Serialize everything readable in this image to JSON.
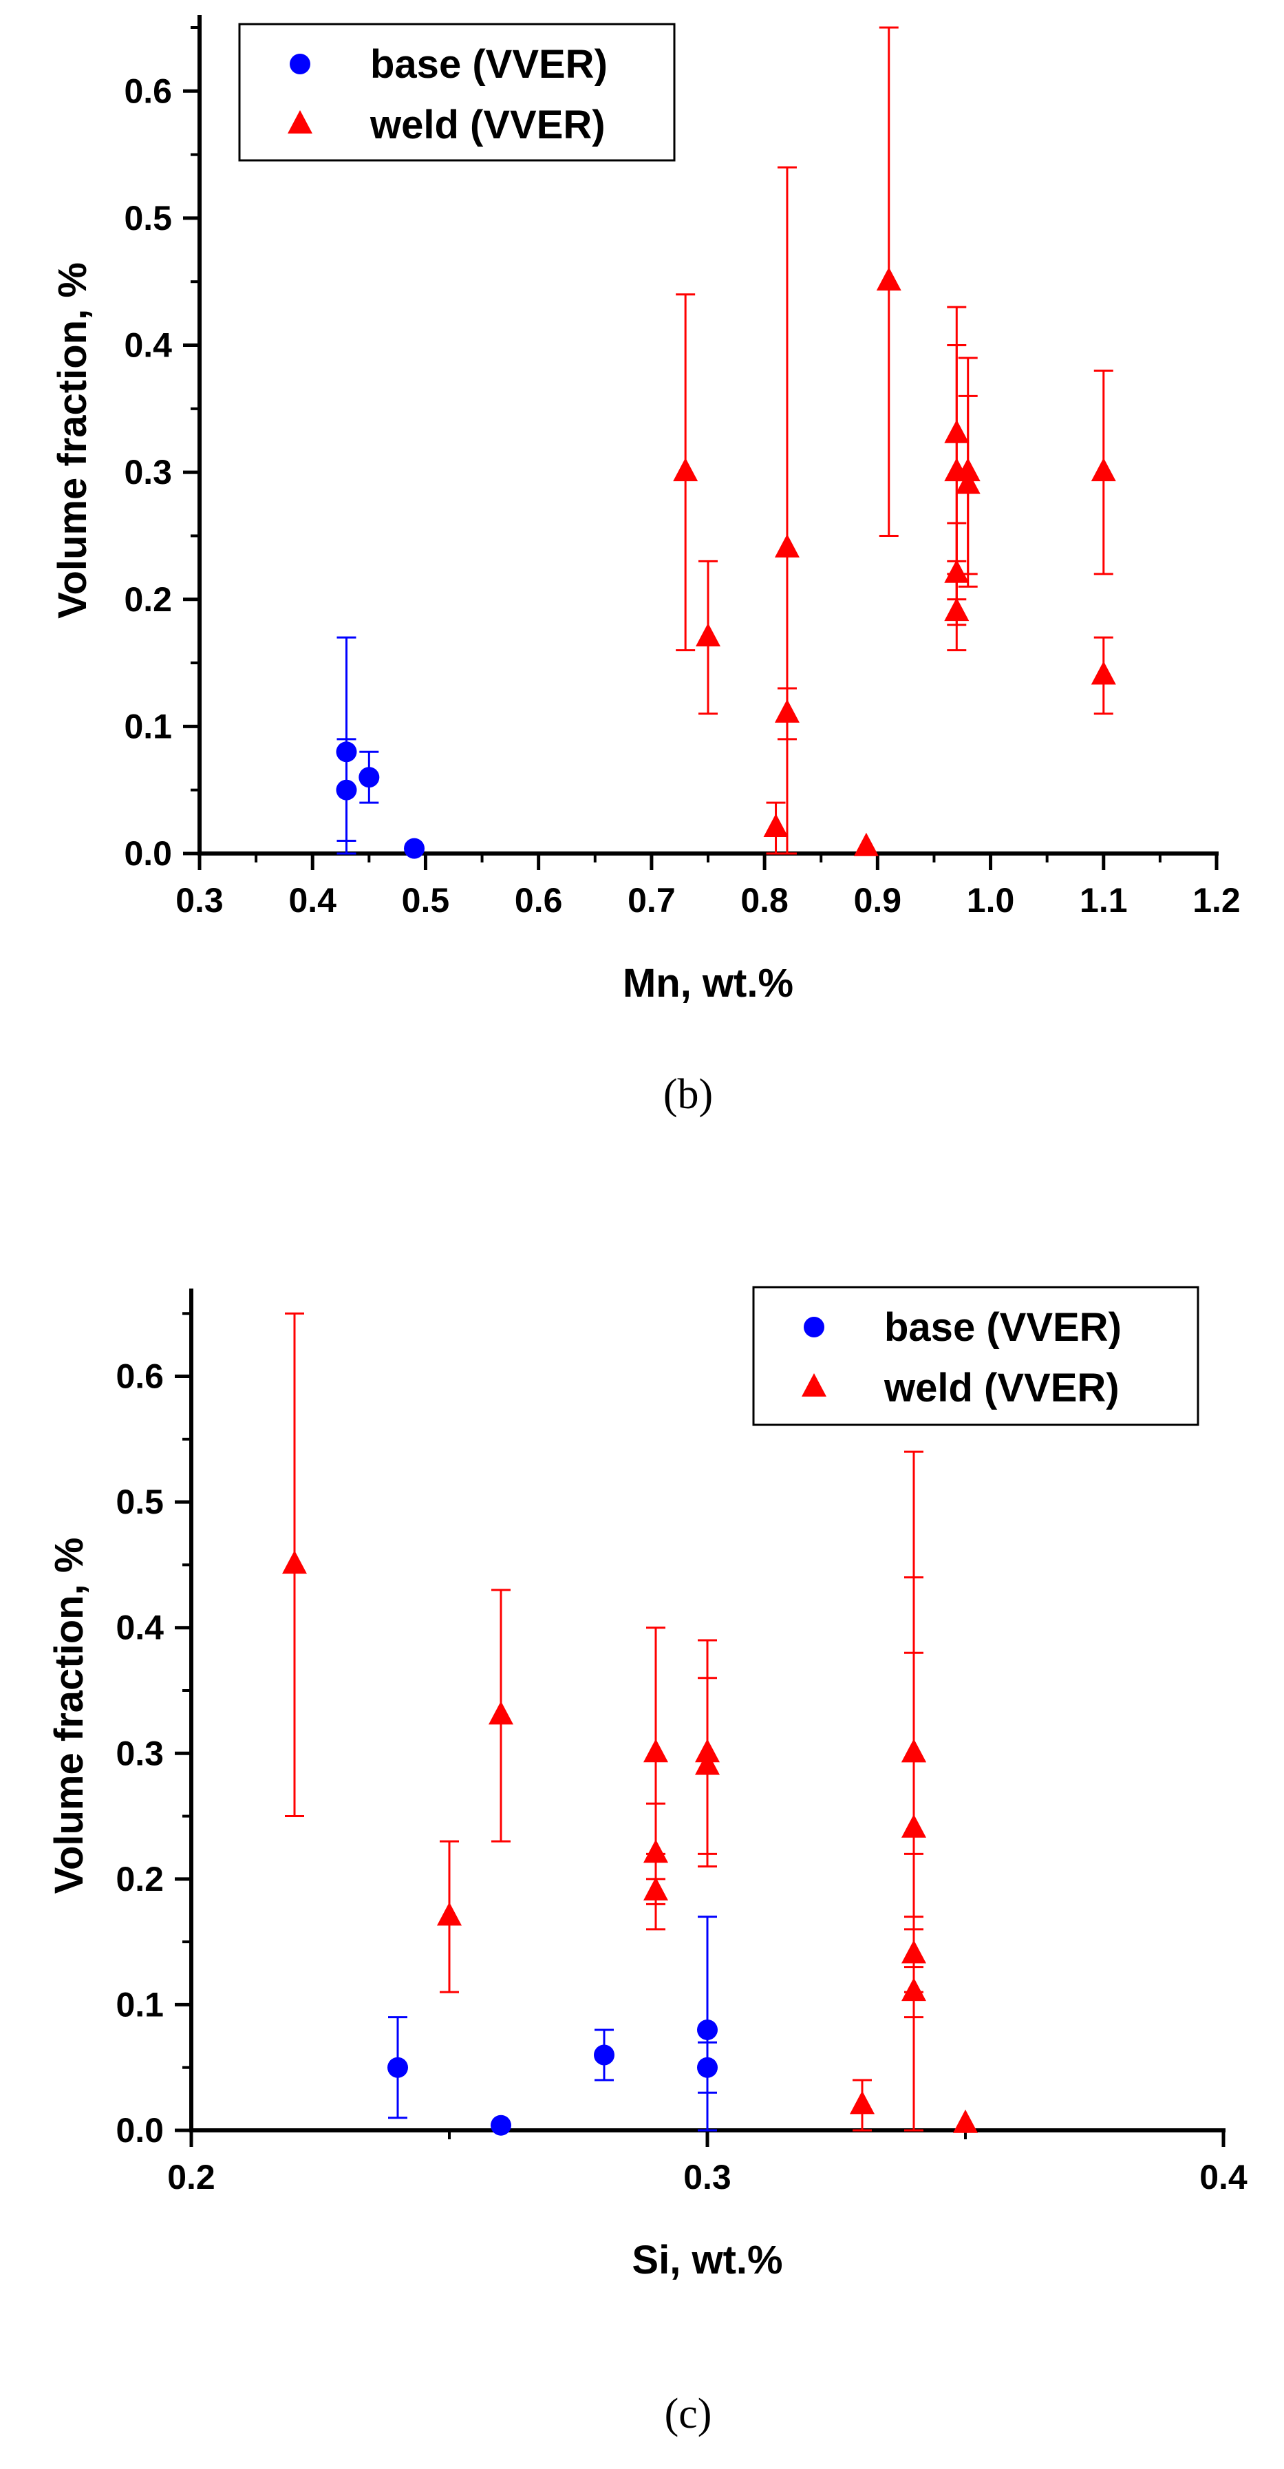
{
  "chart_data": [
    {
      "type": "scatter",
      "panel_label": "(b)",
      "xlabel": "Mn, wt.%",
      "ylabel": "Volume fraction, %",
      "xlim": [
        0.3,
        1.2
      ],
      "ylim": [
        0,
        0.65
      ],
      "xticks": [
        "0.3",
        "0.4",
        "0.5",
        "0.6",
        "0.7",
        "0.8",
        "0.9",
        "1.0",
        "1.1",
        "1.2"
      ],
      "yticks": [
        "0.0",
        "0.1",
        "0.2",
        "0.3",
        "0.4",
        "0.5",
        "0.6"
      ],
      "legend_position": "top-left",
      "error_bars": true,
      "series": [
        {
          "name": "base (VVER)",
          "marker": "circle",
          "color": "#0000ff",
          "points": [
            {
              "x": 0.43,
              "y": 0.08,
              "lo": 0.0,
              "hi": 0.17
            },
            {
              "x": 0.43,
              "y": 0.05,
              "lo": 0.01,
              "hi": 0.09
            },
            {
              "x": 0.45,
              "y": 0.06,
              "lo": 0.04,
              "hi": 0.08
            },
            {
              "x": 0.49,
              "y": 0.004,
              "lo": 0.004,
              "hi": 0.004
            }
          ]
        },
        {
          "name": "weld (VVER)",
          "marker": "triangle",
          "color": "#ff0000",
          "points": [
            {
              "x": 0.73,
              "y": 0.3,
              "lo": 0.16,
              "hi": 0.44
            },
            {
              "x": 0.75,
              "y": 0.17,
              "lo": 0.11,
              "hi": 0.23
            },
            {
              "x": 0.81,
              "y": 0.02,
              "lo": 0.0,
              "hi": 0.04
            },
            {
              "x": 0.82,
              "y": 0.24,
              "lo": 0.0,
              "hi": 0.54
            },
            {
              "x": 0.82,
              "y": 0.11,
              "lo": 0.09,
              "hi": 0.13
            },
            {
              "x": 0.89,
              "y": 0.005,
              "lo": 0.005,
              "hi": 0.005
            },
            {
              "x": 0.91,
              "y": 0.45,
              "lo": 0.25,
              "hi": 0.65
            },
            {
              "x": 0.97,
              "y": 0.33,
              "lo": 0.23,
              "hi": 0.43
            },
            {
              "x": 0.97,
              "y": 0.3,
              "lo": 0.2,
              "hi": 0.4
            },
            {
              "x": 0.97,
              "y": 0.22,
              "lo": 0.18,
              "hi": 0.26
            },
            {
              "x": 0.97,
              "y": 0.19,
              "lo": 0.16,
              "hi": 0.22
            },
            {
              "x": 0.98,
              "y": 0.3,
              "lo": 0.21,
              "hi": 0.39
            },
            {
              "x": 0.98,
              "y": 0.29,
              "lo": 0.22,
              "hi": 0.36
            },
            {
              "x": 1.1,
              "y": 0.3,
              "lo": 0.22,
              "hi": 0.38
            },
            {
              "x": 1.1,
              "y": 0.14,
              "lo": 0.11,
              "hi": 0.17
            }
          ]
        }
      ]
    },
    {
      "type": "scatter",
      "panel_label": "(c)",
      "xlabel": "Si, wt.%",
      "ylabel": "Volume fraction, %",
      "xlim": [
        0.2,
        0.4
      ],
      "ylim": [
        0,
        0.66
      ],
      "xticks": [
        "0.2",
        "0.3",
        "0.4"
      ],
      "yticks": [
        "0.0",
        "0.1",
        "0.2",
        "0.3",
        "0.4",
        "0.5",
        "0.6"
      ],
      "legend_position": "top-right",
      "error_bars": true,
      "series": [
        {
          "name": "base (VVER)",
          "marker": "circle",
          "color": "#0000ff",
          "points": [
            {
              "x": 0.24,
              "y": 0.05,
              "lo": 0.01,
              "hi": 0.09
            },
            {
              "x": 0.26,
              "y": 0.004,
              "lo": 0.004,
              "hi": 0.004
            },
            {
              "x": 0.28,
              "y": 0.06,
              "lo": 0.04,
              "hi": 0.08
            },
            {
              "x": 0.3,
              "y": 0.08,
              "lo": 0.0,
              "hi": 0.17
            },
            {
              "x": 0.3,
              "y": 0.05,
              "lo": 0.03,
              "hi": 0.07
            }
          ]
        },
        {
          "name": "weld (VVER)",
          "marker": "triangle",
          "color": "#ff0000",
          "points": [
            {
              "x": 0.22,
              "y": 0.45,
              "lo": 0.25,
              "hi": 0.65
            },
            {
              "x": 0.25,
              "y": 0.17,
              "lo": 0.11,
              "hi": 0.23
            },
            {
              "x": 0.26,
              "y": 0.33,
              "lo": 0.23,
              "hi": 0.43
            },
            {
              "x": 0.29,
              "y": 0.3,
              "lo": 0.2,
              "hi": 0.4
            },
            {
              "x": 0.29,
              "y": 0.22,
              "lo": 0.18,
              "hi": 0.26
            },
            {
              "x": 0.29,
              "y": 0.19,
              "lo": 0.16,
              "hi": 0.22
            },
            {
              "x": 0.3,
              "y": 0.3,
              "lo": 0.21,
              "hi": 0.39
            },
            {
              "x": 0.3,
              "y": 0.29,
              "lo": 0.22,
              "hi": 0.36
            },
            {
              "x": 0.33,
              "y": 0.02,
              "lo": 0.0,
              "hi": 0.04
            },
            {
              "x": 0.34,
              "y": 0.3,
              "lo": 0.22,
              "hi": 0.38
            },
            {
              "x": 0.34,
              "y": 0.24,
              "lo": 0.0,
              "hi": 0.54
            },
            {
              "x": 0.34,
              "y": 0.14,
              "lo": 0.11,
              "hi": 0.17
            },
            {
              "x": 0.34,
              "y": 0.11,
              "lo": 0.09,
              "hi": 0.13
            },
            {
              "x": 0.34,
              "y": 0.3,
              "lo": 0.16,
              "hi": 0.44
            },
            {
              "x": 0.35,
              "y": 0.005,
              "lo": 0.005,
              "hi": 0.005
            }
          ]
        }
      ]
    }
  ]
}
